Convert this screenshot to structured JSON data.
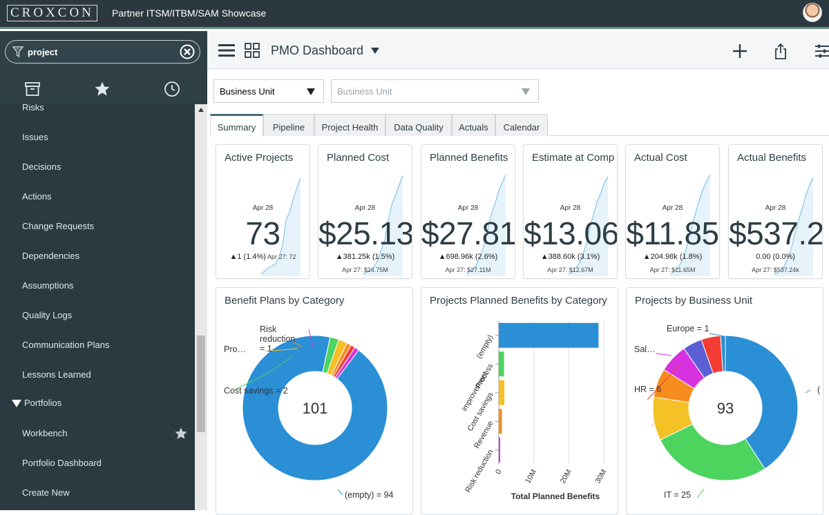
{
  "topbar": {
    "logo": "CROXCON",
    "title": "Partner ITSM/ITBM/SAM Showcase"
  },
  "sidebar": {
    "filter": {
      "value": "project"
    },
    "items": [
      {
        "label": "Risks"
      },
      {
        "label": "Issues"
      },
      {
        "label": "Decisions"
      },
      {
        "label": "Actions"
      },
      {
        "label": "Change Requests"
      },
      {
        "label": "Dependencies"
      },
      {
        "label": "Assumptions"
      },
      {
        "label": "Quality Logs"
      },
      {
        "label": "Communication Plans"
      },
      {
        "label": "Lessons Learned"
      },
      {
        "label": "Portfolios"
      },
      {
        "label": "Workbench"
      },
      {
        "label": "Portfolio Dashboard"
      },
      {
        "label": "Create New"
      }
    ]
  },
  "header": {
    "title": "PMO Dashboard"
  },
  "filters": [
    {
      "value": "Business Unit"
    },
    {
      "placeholder": "Business Unit"
    }
  ],
  "tabs": [
    {
      "label": "Summary"
    },
    {
      "label": "Pipeline"
    },
    {
      "label": "Project Health"
    },
    {
      "label": "Data Quality"
    },
    {
      "label": "Actuals"
    },
    {
      "label": "Calendar"
    }
  ],
  "kpis": [
    {
      "title": "Active Projects",
      "date": "Apr 28",
      "value": "73",
      "delta": "▲1 (1.4%)",
      "prev": "Apr 27: 72",
      "prev_inline": true
    },
    {
      "title": "Planned Cost",
      "date": "Apr 28",
      "value": "$25.13",
      "delta": "▲381.25k (1.5%)",
      "prev": "Apr 27: $24.75M"
    },
    {
      "title": "Planned Benefits",
      "date": "Apr 28",
      "value": "$27.81",
      "delta": "▲698.96k (2.6%)",
      "prev": "Apr 27: $27.11M"
    },
    {
      "title": "Estimate at Comp",
      "date": "Apr 28",
      "value": "$13.06",
      "delta": "▲388.60k (3.1%)",
      "prev": "Apr 27: $12.67M"
    },
    {
      "title": "Actual Cost",
      "date": "Apr 28",
      "value": "$11.85",
      "delta": "▲204.98k (1.8%)",
      "prev": "Apr 27: $11.65M"
    },
    {
      "title": "Actual Benefits",
      "date": "Apr 28",
      "value": "$537.2",
      "delta": "0.00 (0.0%)",
      "prev": "Apr 27: $537.24k"
    }
  ],
  "chart_data": [
    {
      "type": "pie",
      "title": "Benefit Plans by Category",
      "total": "101",
      "slices": [
        {
          "label": "(empty) = 94",
          "value": 94,
          "color": "#2b8fd6"
        },
        {
          "label": "Cost savings = 2",
          "value": 2,
          "color": "#4cd45e"
        },
        {
          "label": "Pro…",
          "value": 2,
          "color": "#f4c126"
        },
        {
          "label": "Risk reduction = 1",
          "value": 1,
          "color": "#f78c1e"
        },
        {
          "label": "",
          "value": 1,
          "color": "#f43c34"
        },
        {
          "label": "",
          "value": 1,
          "color": "#d632e0"
        }
      ]
    },
    {
      "type": "bar",
      "title": "Projects Planned Benefits by Category",
      "categories": [
        "(empty)",
        "Process improvement",
        "Cost savings",
        "Revenue",
        "Risk reduction"
      ],
      "values": [
        28500000,
        1500000,
        1600000,
        900000,
        300000
      ],
      "colors": [
        "#2b8fd6",
        "#4cd45e",
        "#f4c126",
        "#f78c1e",
        "#d632e0"
      ],
      "xlabel": "Total Planned Benefits",
      "xticks": [
        "0",
        "10M",
        "20M",
        "30M"
      ],
      "xlim": [
        0,
        30000000
      ]
    },
    {
      "type": "pie",
      "title": "Projects by Business Unit",
      "total": "93",
      "slices": [
        {
          "label": "(",
          "value": 38,
          "color": "#2b8fd6"
        },
        {
          "label": "IT = 25",
          "value": 25,
          "color": "#4cd45e"
        },
        {
          "label": "",
          "value": 9,
          "color": "#f4c126"
        },
        {
          "label": "HR = 6",
          "value": 6,
          "color": "#f78c1e"
        },
        {
          "label": "Sal…",
          "value": 6,
          "color": "#d632e0"
        },
        {
          "label": "",
          "value": 4,
          "color": "#5a5fd6"
        },
        {
          "label": "",
          "value": 4,
          "color": "#f43c34"
        },
        {
          "label": "Europe = 1",
          "value": 1,
          "color": "#2b8fd6"
        }
      ]
    }
  ]
}
